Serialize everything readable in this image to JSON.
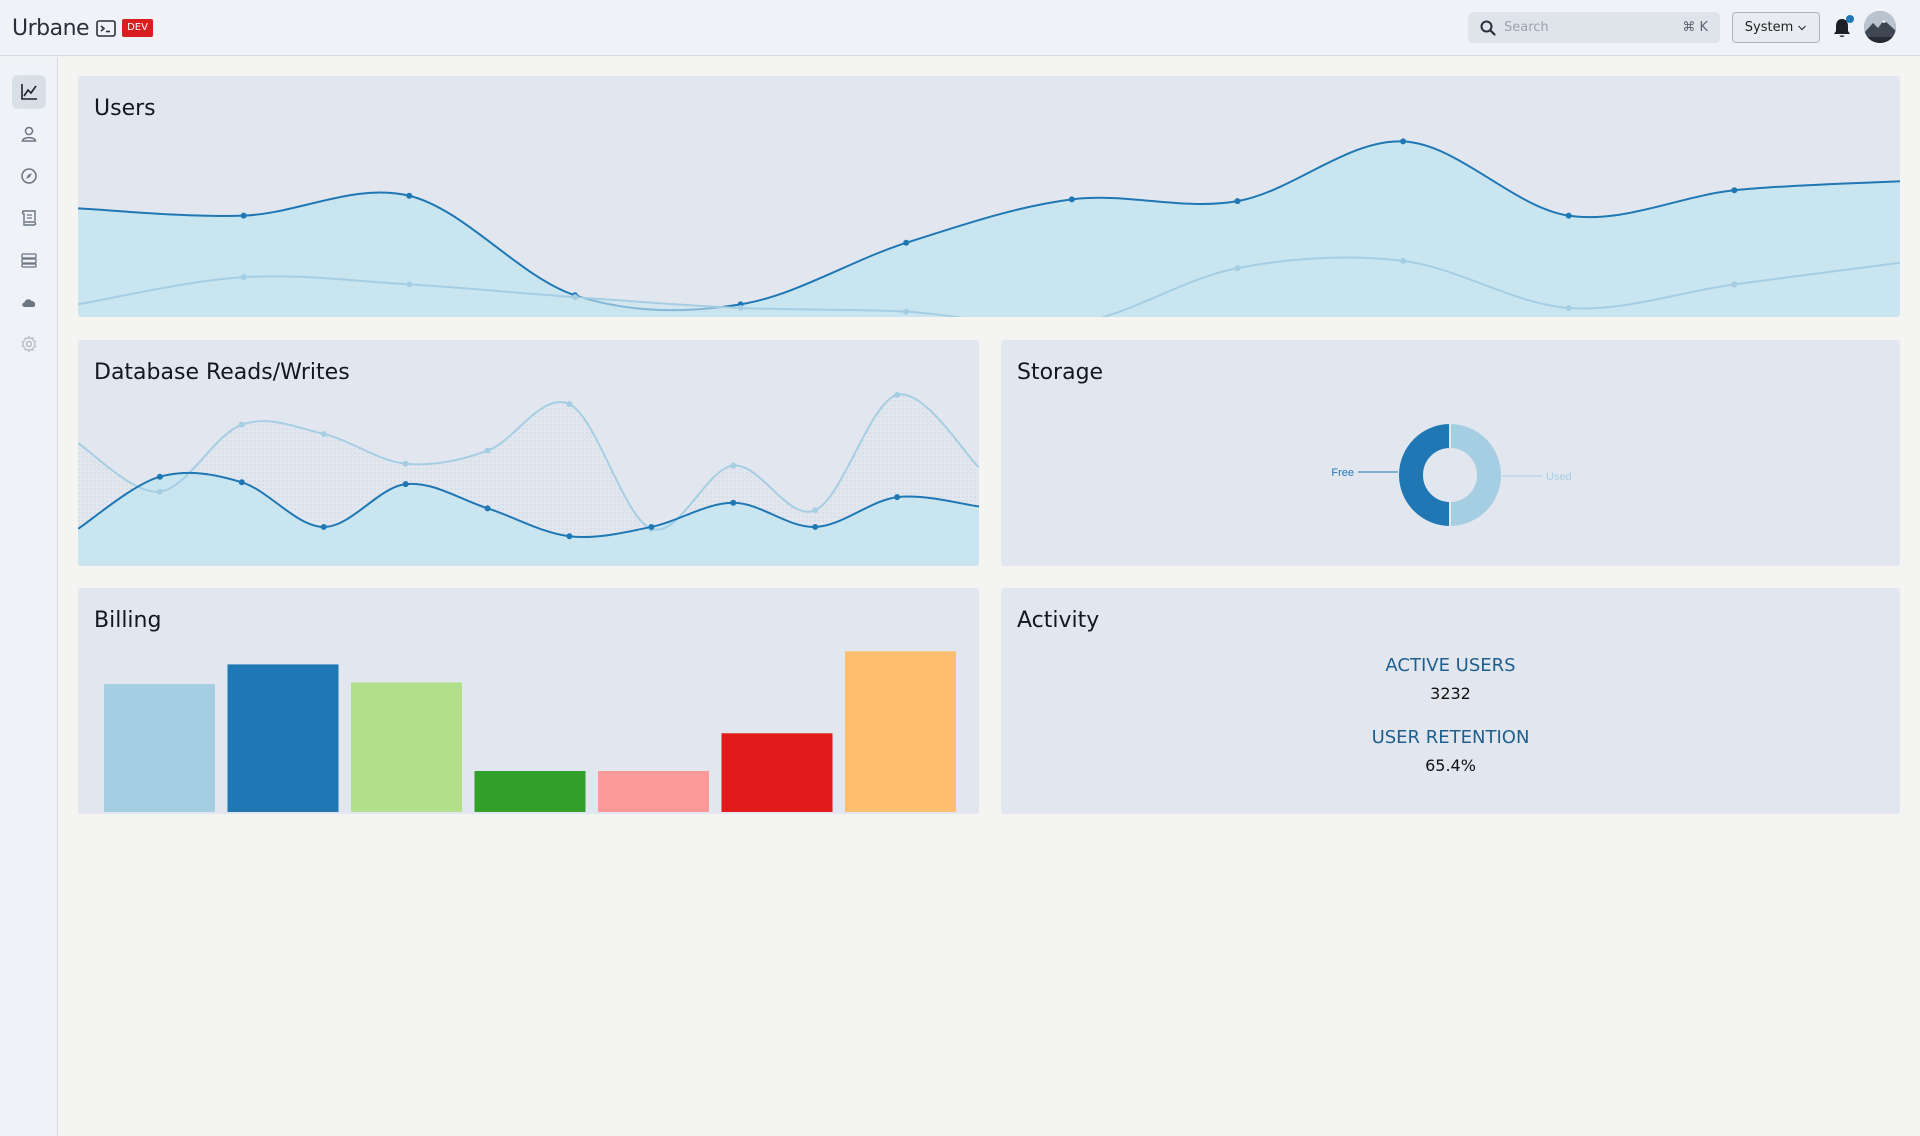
{
  "header": {
    "brand": "Urbane",
    "env_badge": "DEV",
    "search": {
      "placeholder": "Search",
      "shortcut": "⌘ K"
    },
    "theme_select": "System"
  },
  "sidebar": {
    "items": [
      {
        "icon": "chart-line-icon",
        "active": true
      },
      {
        "icon": "user-icon",
        "active": false
      },
      {
        "icon": "compass-icon",
        "active": false
      },
      {
        "icon": "scroll-icon",
        "active": false
      },
      {
        "icon": "database-icon",
        "active": false
      },
      {
        "icon": "cloud-icon",
        "active": false
      },
      {
        "icon": "gear-icon",
        "active": false
      }
    ]
  },
  "colors": {
    "primary": "#1f77b4",
    "secondary": "#a6cee3",
    "fill": "#c9e5ef",
    "card": "#e2e7ef"
  },
  "cards": {
    "users": {
      "title": "Users"
    },
    "db": {
      "title": "Database Reads/Writes"
    },
    "storage": {
      "title": "Storage"
    },
    "billing": {
      "title": "Billing"
    },
    "activity": {
      "title": "Activity",
      "active_users_label": "ACTIVE USERS",
      "active_users_value": "3232",
      "retention_label": "USER RETENTION",
      "retention_value": "65.4%"
    }
  },
  "chart_data": [
    {
      "type": "area",
      "title": "Users",
      "x": [
        0,
        1,
        2,
        3,
        4,
        5,
        6,
        7,
        8,
        9,
        10,
        11
      ],
      "series": [
        {
          "values": [
            0.6,
            0.56,
            0.67,
            0.12,
            0.07,
            0.41,
            0.65,
            0.64,
            0.97,
            0.56,
            0.7,
            0.75
          ]
        },
        {
          "values": [
            0.07,
            0.22,
            0.18,
            0.11,
            0.05,
            0.03,
            -0.04,
            0.27,
            0.31,
            0.05,
            0.18,
            0.3
          ]
        }
      ],
      "ylim": [
        0,
        1
      ]
    },
    {
      "type": "line",
      "title": "Database Reads/Writes",
      "x": [
        0,
        1,
        2,
        3,
        4,
        5,
        6,
        7,
        8,
        9,
        10,
        11
      ],
      "series": [
        {
          "values": [
            0.2,
            0.48,
            0.45,
            0.21,
            0.44,
            0.31,
            0.16,
            0.21,
            0.34,
            0.21,
            0.37,
            0.32
          ]
        },
        {
          "values": [
            0.66,
            0.4,
            0.76,
            0.71,
            0.55,
            0.62,
            0.87,
            0.2,
            0.54,
            0.3,
            0.92,
            0.53
          ]
        }
      ],
      "ylim": [
        0,
        1
      ]
    },
    {
      "type": "pie",
      "title": "Storage",
      "labels": [
        "Free",
        "Used"
      ],
      "values": [
        50,
        50
      ]
    },
    {
      "type": "bar",
      "title": "Billing",
      "values": [
        78,
        90,
        79,
        25,
        25,
        48,
        98
      ],
      "colors": [
        "#a6cee3",
        "#1f77b4",
        "#b2df8a",
        "#33a02c",
        "#fb9a99",
        "#e31a1c",
        "#fdbf6f"
      ],
      "ylim": [
        0,
        100
      ]
    }
  ]
}
